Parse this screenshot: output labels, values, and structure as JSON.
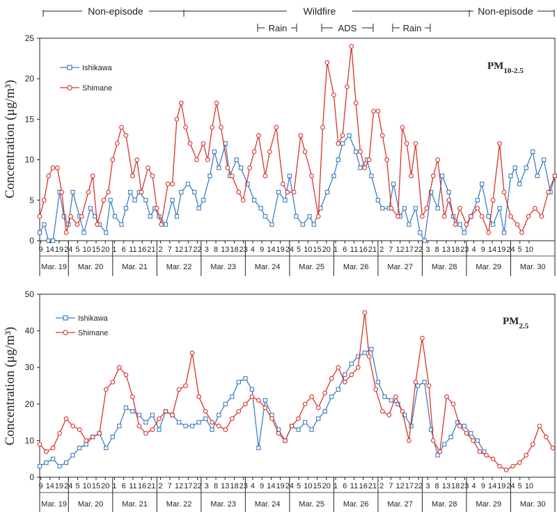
{
  "episodes": {
    "top": [
      {
        "label": "Non-episode",
        "start_day": 0,
        "end_day": 3.5
      },
      {
        "label": "Wildfire",
        "start_day": 3.5,
        "end_day": 10.5
      },
      {
        "label": "Non-episode",
        "start_day": 10.5,
        "end_day": 12.0
      }
    ],
    "sub": [
      {
        "label": "Rain",
        "start_day": 5.4,
        "end_day": 6.0
      },
      {
        "label": "ADS",
        "start_day": 7.2,
        "end_day": 8.5
      },
      {
        "label": "Rain",
        "start_day": 8.5,
        "end_day": 9.3
      }
    ]
  },
  "axes": {
    "ylabel": "Concentration (μg/m³)"
  },
  "dates": [
    "Mar. 19",
    "Mar. 20",
    "Mar. 21",
    "Mar. 22",
    "Mar. 23",
    "Mar. 24",
    "Mar. 25",
    "Mar. 26",
    "Mar. 27",
    "Mar. 28",
    "Mar. 29",
    "Mar. 30"
  ],
  "hour_ticks": [
    [
      9,
      14,
      19,
      24
    ],
    [
      5,
      10,
      15,
      20
    ],
    [
      1,
      6,
      11,
      16,
      21
    ],
    [
      2,
      7,
      12,
      17,
      22
    ],
    [
      3,
      8,
      13,
      18,
      23
    ],
    [
      4,
      9,
      14,
      19,
      24
    ],
    [
      5,
      10,
      15,
      20
    ],
    [
      1,
      6,
      11,
      16,
      21
    ],
    [
      2,
      7,
      12,
      17,
      22
    ],
    [
      3,
      8,
      13,
      18,
      23
    ],
    [
      4,
      9,
      14,
      19,
      24
    ],
    [
      5,
      10
    ]
  ],
  "chart_data": [
    {
      "type": "line",
      "title": "PM10-2.5",
      "title_main": "PM",
      "title_sub": "10-2.5",
      "ylabel": "Concentration (μg/m³)",
      "ylim": [
        0,
        25
      ],
      "yticks": [
        0,
        5,
        10,
        15,
        20,
        25
      ],
      "x_unit": "days since Mar. 19 00:00",
      "xlim": [
        0.35,
        12.0
      ],
      "legend_position": "top-left",
      "series": [
        {
          "name": "Ishikawa",
          "color": "#3d7dc1",
          "marker": "square",
          "x": [
            0.35,
            0.45,
            0.55,
            0.65,
            0.8,
            0.9,
            1.0,
            1.1,
            1.25,
            1.35,
            1.5,
            1.6,
            1.7,
            1.85,
            1.95,
            2.05,
            2.2,
            2.3,
            2.4,
            2.5,
            2.6,
            2.75,
            2.85,
            2.95,
            3.05,
            3.2,
            3.35,
            3.45,
            3.55,
            3.7,
            3.85,
            3.95,
            4.05,
            4.2,
            4.3,
            4.4,
            4.55,
            4.65,
            4.8,
            4.9,
            5.05,
            5.2,
            5.35,
            5.45,
            5.6,
            5.75,
            5.9,
            6.0,
            6.15,
            6.3,
            6.45,
            6.55,
            6.7,
            6.85,
            7.0,
            7.1,
            7.2,
            7.35,
            7.5,
            7.6,
            7.75,
            7.85,
            8.0,
            8.1,
            8.25,
            8.35,
            8.5,
            8.6,
            8.7,
            8.85,
            8.95,
            9.05,
            9.2,
            9.35,
            9.45,
            9.6,
            9.7,
            9.85,
            9.95,
            10.1,
            10.25,
            10.35,
            10.5,
            10.6,
            10.75,
            10.85,
            11.0,
            11.1,
            11.2,
            11.35,
            11.5,
            11.6,
            11.75,
            11.9,
            12.0
          ],
          "values": [
            1,
            2,
            0,
            0,
            6,
            3,
            2,
            6,
            3,
            1,
            4,
            3,
            2,
            1,
            5,
            3,
            2,
            4,
            6,
            5,
            6,
            5,
            3,
            4,
            3,
            2,
            5,
            3,
            6,
            7,
            6,
            4,
            5,
            8,
            11,
            9,
            12,
            8,
            10,
            9,
            7,
            5,
            4,
            3,
            2,
            6,
            5,
            8,
            3,
            2,
            3,
            2,
            4,
            6,
            8,
            10,
            12,
            13,
            11,
            9,
            10,
            8,
            5,
            4,
            4,
            7,
            3,
            4,
            2,
            4,
            1,
            0,
            6,
            4,
            8,
            6,
            3,
            2,
            1,
            3,
            5,
            7,
            3,
            2,
            4,
            1,
            8,
            9,
            7,
            9,
            11,
            8,
            10,
            6,
            8
          ]
        },
        {
          "name": "Shimane",
          "color": "#d7332c",
          "marker": "circle",
          "x": [
            0.35,
            0.45,
            0.55,
            0.65,
            0.75,
            0.85,
            0.95,
            1.05,
            1.2,
            1.3,
            1.45,
            1.55,
            1.65,
            1.8,
            1.9,
            2.0,
            2.1,
            2.2,
            2.3,
            2.45,
            2.55,
            2.65,
            2.8,
            2.9,
            3.0,
            3.1,
            3.25,
            3.35,
            3.45,
            3.55,
            3.65,
            3.75,
            3.9,
            4.05,
            4.15,
            4.25,
            4.35,
            4.45,
            4.6,
            4.7,
            4.85,
            4.95,
            5.1,
            5.2,
            5.3,
            5.45,
            5.55,
            5.7,
            5.85,
            5.95,
            6.1,
            6.25,
            6.35,
            6.5,
            6.65,
            6.75,
            6.85,
            7.0,
            7.1,
            7.2,
            7.3,
            7.4,
            7.5,
            7.6,
            7.7,
            7.8,
            7.9,
            8.0,
            8.1,
            8.2,
            8.3,
            8.45,
            8.55,
            8.65,
            8.75,
            8.85,
            9.0,
            9.1,
            9.25,
            9.35,
            9.5,
            9.6,
            9.75,
            9.85,
            10.0,
            10.1,
            10.25,
            10.35,
            10.5,
            10.6,
            10.75,
            10.85,
            11.0,
            11.15,
            11.25,
            11.4,
            11.55,
            11.7,
            11.85,
            12.0
          ],
          "values": [
            3,
            5,
            8,
            9,
            9,
            6,
            1,
            3,
            2,
            3,
            6,
            8,
            2,
            5,
            6,
            10,
            12,
            14,
            13,
            8,
            10,
            6,
            9,
            8,
            4,
            2,
            7,
            7,
            15,
            17,
            14,
            12,
            10,
            12,
            10,
            14,
            17,
            14,
            9,
            8,
            6,
            5,
            9,
            11,
            13,
            8,
            11,
            14,
            7,
            6,
            6,
            13,
            11,
            8,
            3,
            14,
            22,
            18,
            12,
            13,
            19,
            24,
            17,
            11,
            9,
            10,
            16,
            16,
            13,
            10,
            4,
            3,
            14,
            12,
            8,
            12,
            3,
            4,
            8,
            10,
            3,
            5,
            2,
            4,
            2,
            3,
            4,
            3,
            1,
            5,
            12,
            6,
            3,
            2,
            1,
            3,
            4,
            3,
            6,
            8
          ]
        }
      ]
    },
    {
      "type": "line",
      "title": "PM2.5",
      "title_main": "PM",
      "title_sub": "2.5",
      "ylabel": "Concentration (μg/m³)",
      "ylim": [
        0,
        50
      ],
      "yticks": [
        0,
        10,
        20,
        30,
        40,
        50
      ],
      "x_unit": "days since Mar. 19 00:00",
      "xlim": [
        0.35,
        12.0
      ],
      "legend_position": "top-left",
      "series": [
        {
          "name": "Ishikawa",
          "color": "#3d7dc1",
          "marker": "square",
          "x": [
            0.35,
            0.5,
            0.65,
            0.8,
            0.95,
            1.1,
            1.25,
            1.4,
            1.55,
            1.7,
            1.85,
            2.0,
            2.15,
            2.3,
            2.45,
            2.6,
            2.75,
            2.9,
            3.05,
            3.2,
            3.35,
            3.5,
            3.65,
            3.8,
            3.95,
            4.1,
            4.25,
            4.4,
            4.55,
            4.7,
            4.85,
            5.0,
            5.15,
            5.3,
            5.45,
            5.6,
            5.75,
            5.9,
            6.05,
            6.2,
            6.35,
            6.5,
            6.65,
            6.8,
            6.95,
            7.1,
            7.25,
            7.4,
            7.55,
            7.7,
            7.85,
            8.0,
            8.15,
            8.3,
            8.45,
            8.6,
            8.75,
            8.9,
            9.05,
            9.2,
            9.35,
            9.5,
            9.65,
            9.8,
            9.95,
            10.1,
            10.25,
            10.4
          ],
          "values": [
            3,
            4,
            5,
            3,
            4,
            6,
            8,
            9,
            11,
            12,
            8,
            11,
            14,
            19,
            18,
            17,
            15,
            17,
            13,
            18,
            17,
            15,
            14,
            14,
            15,
            16,
            13,
            17,
            20,
            22,
            26,
            27,
            24,
            8,
            21,
            17,
            13,
            10,
            14,
            13,
            15,
            13,
            16,
            18,
            22,
            24,
            28,
            31,
            33,
            34,
            35,
            26,
            22,
            21,
            20,
            17,
            14,
            25,
            26,
            13,
            6,
            9,
            11,
            15,
            14,
            12,
            10,
            7
          ]
        },
        {
          "name": "Shimane",
          "color": "#d7332c",
          "marker": "circle",
          "x": [
            0.35,
            0.5,
            0.65,
            0.8,
            0.95,
            1.1,
            1.25,
            1.4,
            1.55,
            1.7,
            1.85,
            2.0,
            2.15,
            2.3,
            2.45,
            2.6,
            2.75,
            2.9,
            3.05,
            3.2,
            3.35,
            3.5,
            3.65,
            3.8,
            3.95,
            4.1,
            4.25,
            4.4,
            4.55,
            4.7,
            4.85,
            5.0,
            5.15,
            5.3,
            5.45,
            5.6,
            5.75,
            5.9,
            6.05,
            6.2,
            6.35,
            6.5,
            6.65,
            6.8,
            6.95,
            7.1,
            7.25,
            7.4,
            7.55,
            7.7,
            7.8,
            7.95,
            8.1,
            8.25,
            8.4,
            8.55,
            8.7,
            8.85,
            9.0,
            9.15,
            9.25,
            9.4,
            9.55,
            9.7,
            9.85,
            10.0,
            10.15,
            10.3,
            10.45,
            10.6,
            10.75,
            10.9,
            11.05,
            11.2,
            11.35,
            11.5,
            11.65,
            11.8,
            11.95
          ],
          "values": [
            9,
            7,
            8,
            12,
            16,
            14,
            13,
            10,
            11,
            12,
            24,
            26,
            30,
            28,
            22,
            14,
            12,
            13,
            16,
            18,
            17,
            24,
            25,
            34,
            22,
            18,
            15,
            14,
            13,
            16,
            18,
            20,
            22,
            21,
            19,
            16,
            12,
            10,
            14,
            16,
            20,
            22,
            19,
            23,
            27,
            30,
            26,
            28,
            30,
            45,
            33,
            24,
            18,
            17,
            22,
            18,
            10,
            26,
            38,
            25,
            10,
            7,
            22,
            20,
            14,
            12,
            10,
            7,
            6,
            5,
            3,
            2,
            3,
            4,
            6,
            9,
            14,
            11,
            8
          ]
        }
      ]
    }
  ]
}
